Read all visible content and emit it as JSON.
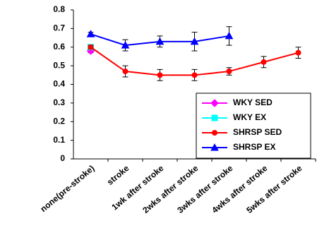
{
  "chart_data": {
    "type": "line",
    "categories": [
      "none(pre-stroke)",
      "stroke",
      "1wk after stroke",
      "2wks after stroke",
      "3wks after stroke",
      "4wks after stroke",
      "5wks after stroke"
    ],
    "series": [
      {
        "name": "WKY SED",
        "color": "#ff00ff",
        "marker": "diamond",
        "values": [
          0.58,
          null,
          null,
          null,
          null,
          null,
          null
        ],
        "errors": [
          0.01,
          null,
          null,
          null,
          null,
          null,
          null
        ]
      },
      {
        "name": "WKY EX",
        "color": "#00ffff",
        "marker": "square",
        "values": [
          0.6,
          null,
          null,
          null,
          null,
          null,
          null
        ],
        "errors": [
          0.01,
          null,
          null,
          null,
          null,
          null,
          null
        ]
      },
      {
        "name": "SHRSP SED",
        "color": "#ff0000",
        "marker": "circle",
        "values": [
          0.6,
          0.47,
          0.45,
          0.45,
          0.47,
          0.52,
          0.57
        ],
        "errors": [
          0.01,
          0.03,
          0.03,
          0.03,
          0.02,
          0.03,
          0.03
        ]
      },
      {
        "name": "SHRSP EX",
        "color": "#0000ff",
        "marker": "triangle",
        "values": [
          0.67,
          0.61,
          0.63,
          0.63,
          0.66,
          null,
          null
        ],
        "errors": [
          0.01,
          0.03,
          0.03,
          0.05,
          0.05,
          null,
          null
        ]
      }
    ],
    "ylim": [
      0,
      0.8
    ],
    "yticks": [
      {
        "value": 0,
        "label": "0"
      },
      0.1,
      0.2,
      0.3,
      0.4,
      0.5,
      0.6,
      0.7,
      0.8
    ],
    "legend": "lower right"
  }
}
